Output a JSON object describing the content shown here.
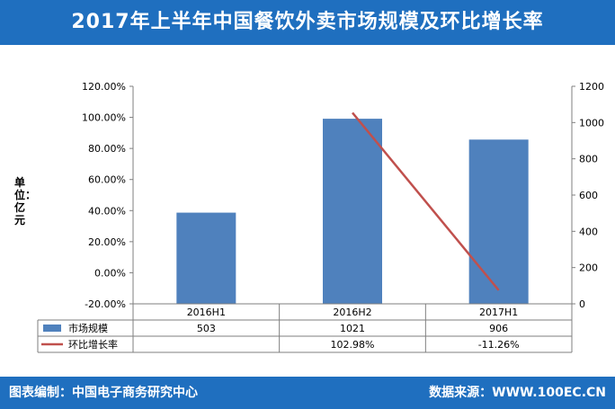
{
  "header": {
    "title": "2017年上半年中国餐饮外卖市场规模及环比增长率"
  },
  "footer": {
    "left": "图表编制：中国电子商务研究中心",
    "right": "数据来源：WWW.100EC.CN"
  },
  "unit_label": "单位：亿元",
  "chart_data": {
    "type": "bar",
    "categories": [
      "2016H1",
      "2016H2",
      "2017H1"
    ],
    "series": [
      {
        "name": "市场规模",
        "type": "bar",
        "axis": "right",
        "values": [
          503,
          1021,
          906
        ],
        "labels": [
          "503",
          "1021",
          "906"
        ],
        "color": "#4f81bd"
      },
      {
        "name": "环比增长率",
        "type": "line",
        "axis": "left",
        "values": [
          null,
          102.98,
          -11.26
        ],
        "labels": [
          "",
          "102.98%",
          "-11.26%"
        ],
        "color": "#c0504d"
      }
    ],
    "left_axis": {
      "min": -20,
      "max": 120,
      "step": 20,
      "ticks": [
        "-20.00%",
        "0.00%",
        "20.00%",
        "40.00%",
        "60.00%",
        "80.00%",
        "100.00%",
        "120.00%"
      ]
    },
    "right_axis": {
      "min": 0,
      "max": 1200,
      "step": 200,
      "ticks": [
        "0",
        "200",
        "400",
        "600",
        "800",
        "1000",
        "1200"
      ]
    },
    "legend": "data-table",
    "grid": false
  }
}
